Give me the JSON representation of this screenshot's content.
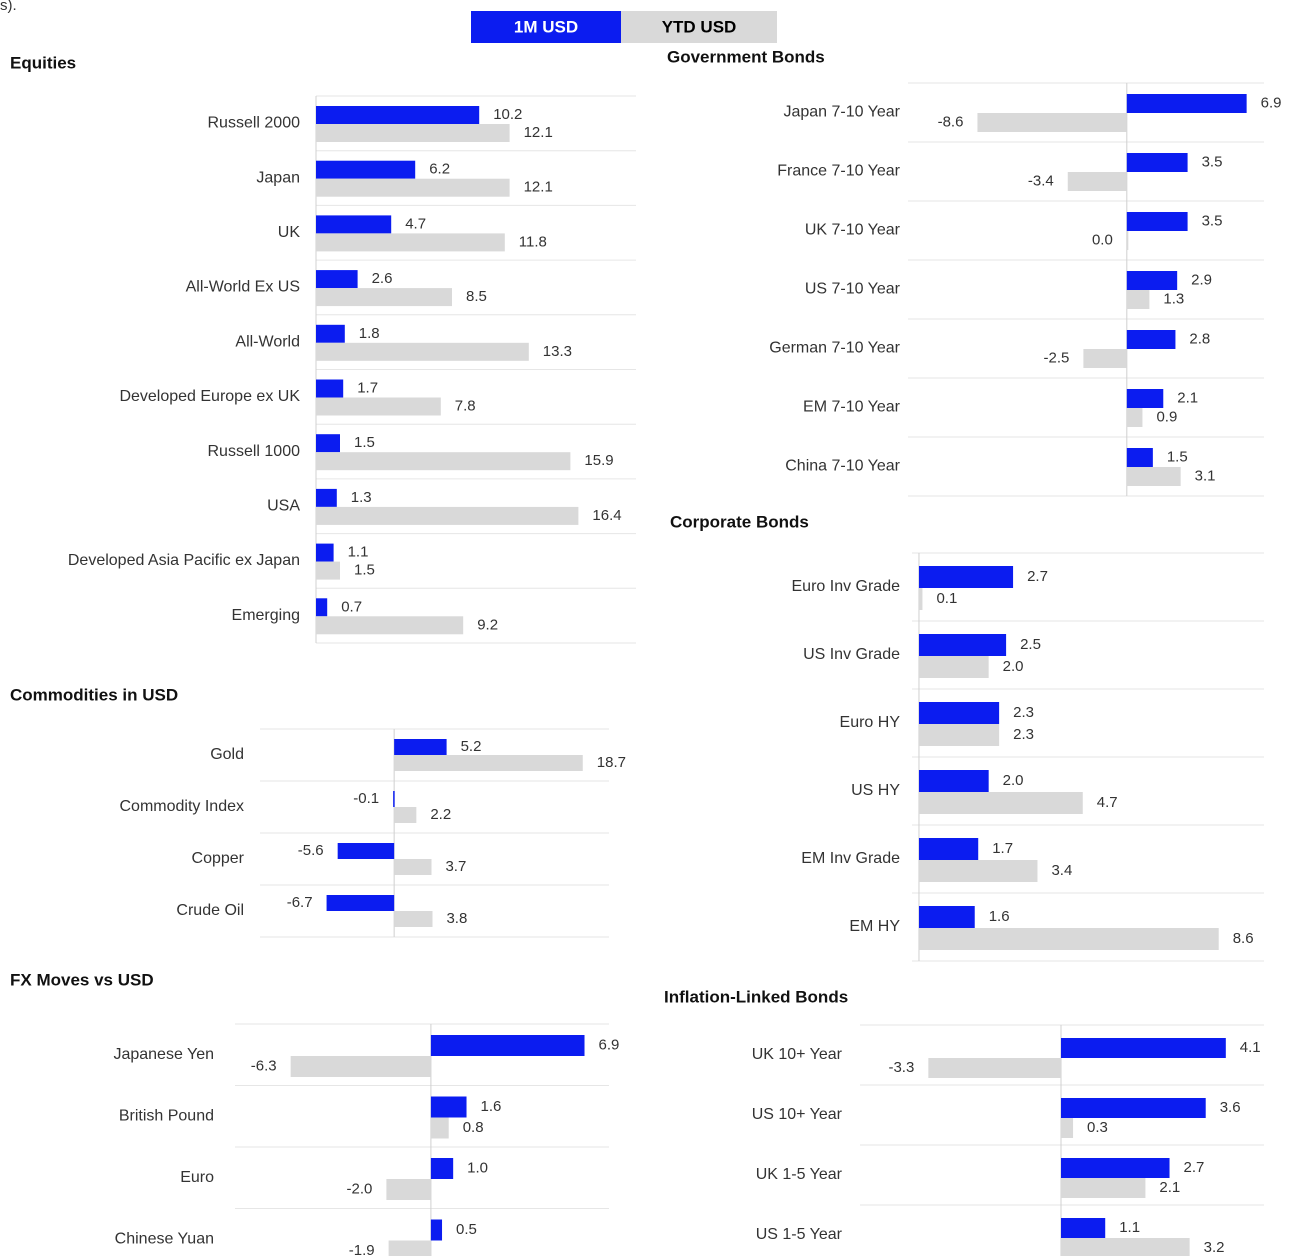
{
  "caption_fragment": "s).",
  "legend": [
    {
      "name": "1M USD",
      "color": "#0b1cf0"
    },
    {
      "name": "YTD USD",
      "color": "#d9d9d9"
    }
  ],
  "chart_data": [
    {
      "type": "bar",
      "title": "Equities",
      "categories": [
        "Russell 2000",
        "Japan",
        "UK",
        "All-World Ex US",
        "All-World",
        "Developed Europe ex UK",
        "Russell 1000",
        "USA",
        "Developed Asia Pacific ex Japan",
        "Emerging"
      ],
      "series": [
        {
          "values": [
            10.2,
            6.2,
            4.7,
            2.6,
            1.8,
            1.7,
            1.5,
            1.3,
            1.1,
            0.7
          ],
          "value_labels": [
            "10.2",
            "6.2",
            "4.7",
            "2.6",
            "1.8",
            "1.7",
            "1.5",
            "1.3",
            "1.1",
            "0.7"
          ]
        },
        {
          "values": [
            12.1,
            12.1,
            11.8,
            8.5,
            13.3,
            7.8,
            15.9,
            16.4,
            1.5,
            9.2
          ],
          "value_labels": [
            "12.1",
            "12.1",
            "11.8",
            "8.5",
            "13.3",
            "7.8",
            "15.9",
            "16.4",
            "1.5",
            "9.2"
          ]
        }
      ],
      "xlim": [
        0,
        20
      ]
    },
    {
      "type": "bar",
      "title": "Commodities in USD",
      "categories": [
        "Gold",
        "Commodity Index",
        "Copper",
        "Crude Oil"
      ],
      "series": [
        {
          "values": [
            5.2,
            -0.1,
            -5.6,
            -6.7
          ],
          "value_labels": [
            "5.2",
            "-0.1",
            "-5.6",
            "-6.7"
          ]
        },
        {
          "values": [
            18.7,
            2.2,
            3.7,
            3.8
          ],
          "value_labels": [
            "18.7",
            "2.2",
            "3.7",
            "3.8"
          ]
        }
      ],
      "xlim": [
        -13.3,
        21.3
      ]
    },
    {
      "type": "bar",
      "title": "FX Moves vs USD",
      "categories": [
        "Japanese Yen",
        "British Pound",
        "Euro",
        "Chinese Yuan"
      ],
      "series": [
        {
          "values": [
            6.9,
            1.6,
            1.0,
            0.5
          ],
          "value_labels": [
            "6.9",
            "1.6",
            "1.0",
            "0.5"
          ]
        },
        {
          "values": [
            -6.3,
            0.8,
            -2.0,
            -1.9
          ],
          "value_labels": [
            "-6.3",
            "0.8",
            "-2.0",
            "-1.9"
          ]
        }
      ],
      "xlim": [
        -8.8,
        8.0
      ]
    },
    {
      "type": "bar",
      "title": "Government Bonds",
      "categories": [
        "Japan 7-10 Year",
        "France 7-10 Year",
        "UK 7-10 Year",
        "US 7-10 Year",
        "German 7-10 Year",
        "EM 7-10 Year",
        "China 7-10 Year"
      ],
      "series": [
        {
          "values": [
            6.9,
            3.5,
            3.5,
            2.9,
            2.8,
            2.1,
            1.5
          ],
          "value_labels": [
            "6.9",
            "3.5",
            "3.5",
            "2.9",
            "2.8",
            "2.1",
            "1.5"
          ]
        },
        {
          "values": [
            -8.6,
            -3.4,
            0.0,
            1.3,
            -2.5,
            0.9,
            3.1
          ],
          "value_labels": [
            "-8.6",
            "-3.4",
            "0.0",
            "1.3",
            "-2.5",
            "0.9",
            "3.1"
          ]
        }
      ],
      "xlim": [
        -12.6,
        7.9
      ]
    },
    {
      "type": "bar",
      "title": "Corporate Bonds",
      "categories": [
        "Euro Inv Grade",
        "US Inv Grade",
        "Euro HY",
        "US HY",
        "EM Inv Grade",
        "EM HY"
      ],
      "series": [
        {
          "values": [
            2.7,
            2.5,
            2.3,
            2.0,
            1.7,
            1.6
          ],
          "value_labels": [
            "2.7",
            "2.5",
            "2.3",
            "2.0",
            "1.7",
            "1.6"
          ]
        },
        {
          "values": [
            0.1,
            2.0,
            2.3,
            4.7,
            3.4,
            8.6
          ],
          "value_labels": [
            "0.1",
            "2.0",
            "2.3",
            "4.7",
            "3.4",
            "8.6"
          ]
        }
      ],
      "xlim": [
        -0.2,
        9.9
      ]
    },
    {
      "type": "bar",
      "title": "Inflation-Linked Bonds",
      "categories": [
        "UK 10+ Year",
        "US 10+ Year",
        "UK 1-5 Year",
        "US 1-5 Year"
      ],
      "series": [
        {
          "values": [
            4.1,
            3.6,
            2.7,
            1.1
          ],
          "value_labels": [
            "4.1",
            "3.6",
            "2.7",
            "1.1"
          ]
        },
        {
          "values": [
            -3.3,
            0.3,
            2.1,
            3.2
          ],
          "value_labels": [
            "-3.3",
            "0.3",
            "2.1",
            "3.2"
          ]
        }
      ],
      "xlim": [
        -5.0,
        5.05
      ]
    }
  ]
}
